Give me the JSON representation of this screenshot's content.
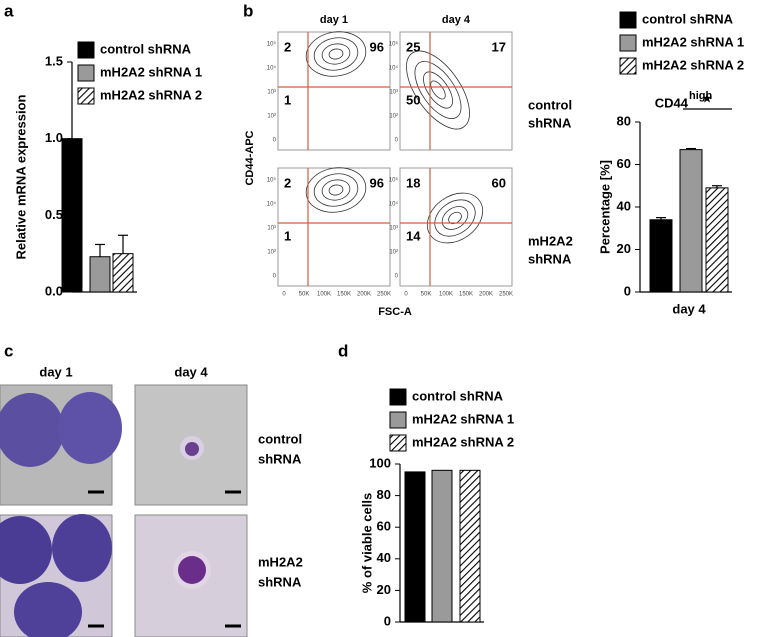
{
  "panel_labels": [
    "a",
    "b",
    "c",
    "d"
  ],
  "chart_data": [
    {
      "type": "bar",
      "ylabel": "Relative mRNA expression",
      "ylim": [
        0,
        1.5
      ],
      "yticks": [
        {
          "value": 0,
          "label": "0.0"
        },
        0.5,
        {
          "value": 1,
          "label": "1.0"
        },
        1.5
      ],
      "series": [
        {
          "name": "control shRNA",
          "color": "#000000",
          "values": [
            1.0
          ]
        },
        {
          "name": "mH2A2 shRNA 1",
          "color": "#9a9a9a",
          "values": [
            0.23
          ],
          "errors": [
            0.08
          ]
        },
        {
          "name": "mH2A2 shRNA 2",
          "color": "#ffffff",
          "pattern": "hatch",
          "values": [
            0.25
          ],
          "errors": [
            0.12
          ]
        }
      ]
    },
    {
      "type": "bar",
      "title": "CD44",
      "title_sup": "high",
      "ylabel": "Percentage [%]",
      "categories": [
        "day 4"
      ],
      "annotation": "★",
      "ylim": [
        0,
        80
      ],
      "yticks": [
        0,
        20,
        40,
        60,
        80
      ],
      "series": [
        {
          "name": "control shRNA",
          "color": "#000000",
          "values": [
            34
          ],
          "errors": [
            1
          ]
        },
        {
          "name": "mH2A2 shRNA 1",
          "color": "#9a9a9a",
          "values": [
            67
          ],
          "errors": [
            0.5
          ]
        },
        {
          "name": "mH2A2 shRNA 2",
          "color": "#ffffff",
          "pattern": "hatch",
          "values": [
            49
          ],
          "errors": [
            1
          ]
        }
      ]
    },
    {
      "type": "bar",
      "ylabel": "% of viable cells",
      "ylim": [
        0,
        100
      ],
      "yticks": [
        0,
        20,
        40,
        60,
        80,
        100
      ],
      "series": [
        {
          "name": "control shRNA",
          "color": "#000000",
          "values": [
            95
          ]
        },
        {
          "name": "mH2A2 shRNA 1",
          "color": "#9a9a9a",
          "values": [
            96
          ]
        },
        {
          "name": "mH2A2 shRNA 2",
          "color": "#ffffff",
          "pattern": "hatch",
          "values": [
            96
          ]
        }
      ]
    }
  ],
  "flow": {
    "columns": [
      "day 1",
      "day 4"
    ],
    "rows": [
      [
        "control",
        "shRNA"
      ],
      [
        "mH2A2",
        "shRNA"
      ]
    ],
    "x_label": "FSC-A",
    "y_label": "CD44-APC",
    "xticks": [
      "0",
      "50K",
      "100K",
      "150K",
      "200K",
      "250K"
    ],
    "yticks": [
      "10⁵",
      "10⁴",
      "10³",
      "10²",
      "0"
    ],
    "plots": [
      [
        2,
        96,
        1
      ],
      [
        25,
        17,
        50
      ],
      [
        2,
        96,
        1
      ],
      [
        18,
        60,
        14
      ]
    ]
  },
  "micrographs": {
    "columns": [
      "day 1",
      "day 4"
    ],
    "rows": [
      [
        "control",
        "shRNA"
      ],
      [
        "mH2A2",
        "shRNA"
      ]
    ]
  }
}
